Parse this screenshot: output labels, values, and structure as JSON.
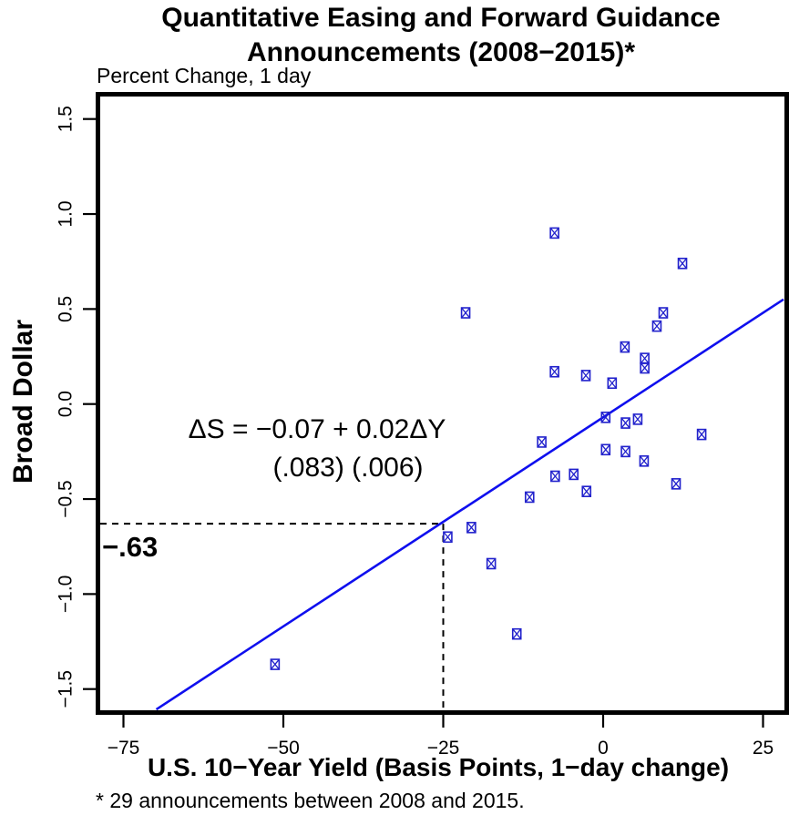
{
  "title": {
    "line1": "Quantitative Easing and Forward Guidance",
    "line2": "Announcements (2008−2015)*"
  },
  "subtitle": "Percent Change, 1 day",
  "y_axis": {
    "label": "Broad Dollar",
    "tick_values": [
      1.5,
      1.0,
      0.5,
      0.0,
      -0.5,
      -1.0,
      -1.5
    ],
    "tick_labels": [
      "1.5",
      "1.0",
      "0.5",
      "0.0",
      "−0.5",
      "−1.0",
      "−1.5"
    ]
  },
  "x_axis": {
    "label": "U.S. 10−Year Yield (Basis Points, 1−day change)",
    "tick_values": [
      -75,
      -50,
      -25,
      0,
      25
    ],
    "tick_labels": [
      "−75",
      "−50",
      "−25",
      "0",
      "25"
    ]
  },
  "annotation": {
    "equation": "ΔS = −0.07 + 0.02ΔY",
    "std_errors": "(.083)  (.006)",
    "guide_label": "−.63"
  },
  "footnote": "* 29 announcements between 2008 and 2015.",
  "colors": {
    "point_blue": "#2222cc",
    "line_blue": "#0f0fee",
    "axis_black": "#000000"
  },
  "chart_data": {
    "type": "scatter",
    "title": "Quantitative Easing and Forward Guidance Announcements (2008-2015)*",
    "xlabel": "U.S. 10-Year Yield (Basis Points, 1-day change)",
    "ylabel": "Broad Dollar (Percent Change, 1 day)",
    "xlim": [
      -78.3,
      28.2
    ],
    "ylim": [
      -1.607,
      1.614
    ],
    "grid": false,
    "points": [
      [
        -7.6,
        0.9
      ],
      [
        12.4,
        0.74
      ],
      [
        -21.5,
        0.48
      ],
      [
        9.4,
        0.48
      ],
      [
        8.4,
        0.41
      ],
      [
        3.4,
        0.3
      ],
      [
        6.5,
        0.24
      ],
      [
        6.5,
        0.19
      ],
      [
        -7.6,
        0.17
      ],
      [
        -2.7,
        0.15
      ],
      [
        1.4,
        0.11
      ],
      [
        0.4,
        -0.07
      ],
      [
        5.4,
        -0.08
      ],
      [
        3.5,
        -0.1
      ],
      [
        15.4,
        -0.16
      ],
      [
        -9.6,
        -0.2
      ],
      [
        0.4,
        -0.24
      ],
      [
        3.5,
        -0.25
      ],
      [
        6.4,
        -0.3
      ],
      [
        -4.6,
        -0.37
      ],
      [
        -7.5,
        -0.38
      ],
      [
        11.4,
        -0.42
      ],
      [
        -2.6,
        -0.46
      ],
      [
        -11.5,
        -0.49
      ],
      [
        -20.6,
        -0.65
      ],
      [
        -24.3,
        -0.7
      ],
      [
        -17.5,
        -0.84
      ],
      [
        -13.5,
        -1.21
      ],
      [
        -51.3,
        -1.37
      ]
    ],
    "regression_line": {
      "intercept": -0.07,
      "slope": 0.022
    },
    "guide": {
      "x": -25,
      "y": -0.63
    }
  }
}
